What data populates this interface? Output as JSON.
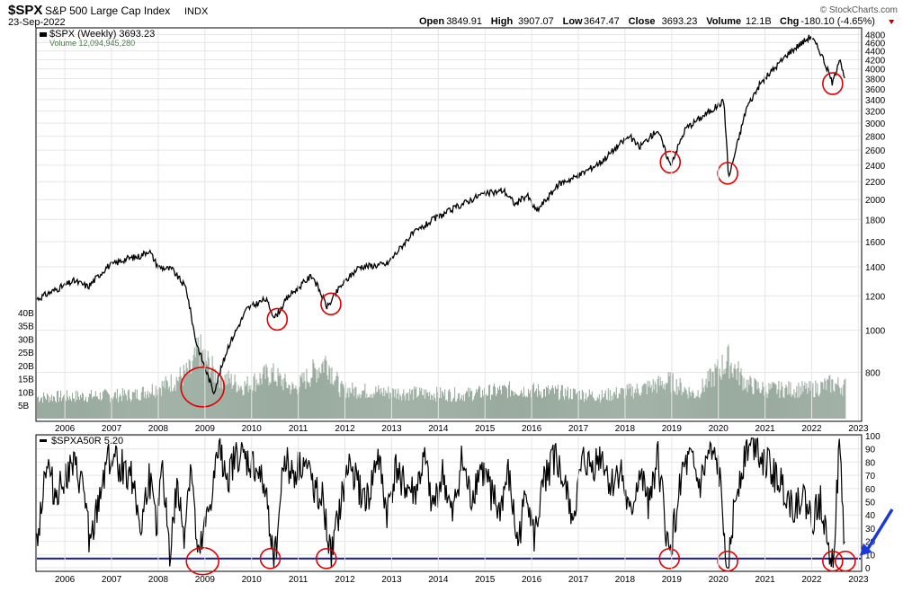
{
  "header": {
    "symbol": "$SPX",
    "name": "S&P 500 Large Cap Index",
    "exchange": "INDX",
    "date": "23-Sep-2022",
    "watermark": "© StockCharts.com",
    "quote": [
      {
        "label": "Open",
        "value": "3849.91"
      },
      {
        "label": "High",
        "value": "3907.07"
      },
      {
        "label": "Low",
        "value": "3647.47"
      },
      {
        "label": "Close",
        "value": "3693.23"
      },
      {
        "label": "Volume",
        "value": "12.1B"
      },
      {
        "label": "Chg",
        "value": "-180.10 (-4.65%)"
      }
    ],
    "chg_color": "#b00000"
  },
  "chart_data": [
    {
      "type": "line",
      "panel": "price",
      "legend": "$SPX (Weekly) 3693.23",
      "volume_legend": "Volume 12,094,945,280",
      "y_scale": "log",
      "ylim": [
        620,
        4950
      ],
      "x_ticks": [
        "2006",
        "2007",
        "2008",
        "2009",
        "2010",
        "2011",
        "2012",
        "2013",
        "2014",
        "2015",
        "2016",
        "2017",
        "2018",
        "2019",
        "2020",
        "2021",
        "2022",
        "2023"
      ],
      "y_ticks": [
        "800",
        "1000",
        "1200",
        "1400",
        "1600",
        "1800",
        "2000",
        "2200",
        "2400",
        "2600",
        "2800",
        "3000",
        "3200",
        "3400",
        "3600",
        "3800",
        "4000",
        "4200",
        "4400",
        "4600",
        "4800"
      ],
      "volume_ticks": [
        "5B",
        "10B",
        "15B",
        "20B",
        "25B",
        "30B",
        "35B",
        "40B"
      ],
      "series": [
        {
          "x": [
            2005.4,
            2005.8,
            2006.2,
            2006.5,
            2006.9,
            2007.3,
            2007.6,
            2007.8,
            2008.0,
            2008.3,
            2008.6,
            2008.8,
            2008.95,
            2009.19,
            2009.5,
            2009.9,
            2010.3,
            2010.5,
            2010.8,
            2011.3,
            2011.62,
            2011.9,
            2012.3,
            2012.9,
            2013.4,
            2013.9,
            2014.5,
            2014.9,
            2015.4,
            2015.65,
            2015.9,
            2016.1,
            2016.6,
            2017.0,
            2017.5,
            2017.9,
            2018.1,
            2018.3,
            2018.7,
            2018.97,
            2019.3,
            2019.9,
            2020.12,
            2020.22,
            2020.6,
            2020.9,
            2021.5,
            2021.98,
            2022.2,
            2022.45,
            2022.6,
            2022.72
          ],
          "y": [
            1180,
            1240,
            1300,
            1260,
            1400,
            1460,
            1480,
            1530,
            1400,
            1380,
            1250,
            950,
            850,
            720,
            920,
            1120,
            1180,
            1070,
            1200,
            1340,
            1130,
            1260,
            1400,
            1420,
            1650,
            1800,
            1950,
            2050,
            2100,
            1950,
            2050,
            1880,
            2180,
            2270,
            2450,
            2690,
            2800,
            2640,
            2900,
            2400,
            2920,
            3240,
            3380,
            2240,
            3250,
            3700,
            4350,
            4760,
            4350,
            3700,
            4280,
            3693
          ]
        }
      ],
      "volume": {
        "unit": "B",
        "x": [
          2005.4,
          2006.5,
          2007.5,
          2008.2,
          2008.7,
          2008.85,
          2009.2,
          2009.8,
          2010.4,
          2010.9,
          2011.6,
          2011.9,
          2012.8,
          2013.5,
          2014.5,
          2015.6,
          2016.5,
          2017.5,
          2018.3,
          2018.95,
          2019.5,
          2020.2,
          2020.6,
          2021.0,
          2022.0,
          2022.4,
          2022.72
        ],
        "values": [
          8,
          8.5,
          9,
          13,
          18,
          26,
          17,
          12,
          17,
          11,
          22,
          11,
          10,
          9.5,
          9,
          11,
          10,
          8.5,
          11,
          14,
          9,
          22,
          13,
          11,
          11,
          13,
          12.1
        ]
      },
      "annotations": [
        {
          "x": 2008.95,
          "y": 740,
          "size": "large"
        },
        {
          "x": 2010.55,
          "y": 1060
        },
        {
          "x": 2011.7,
          "y": 1150
        },
        {
          "x": 2018.97,
          "y": 2440
        },
        {
          "x": 2020.2,
          "y": 2300
        },
        {
          "x": 2022.45,
          "y": 3700
        }
      ]
    },
    {
      "type": "line",
      "panel": "indicator",
      "legend": "$SPXA50R 5.20",
      "ylim": [
        -2,
        100
      ],
      "y_ticks": [
        "0",
        "10",
        "20",
        "30",
        "40",
        "50",
        "60",
        "70",
        "80",
        "90",
        "100"
      ],
      "reference_line": {
        "value": 7,
        "color": "#1a1aa0"
      },
      "series": [
        {
          "x": [
            2005.4,
            2005.6,
            2005.8,
            2006.0,
            2006.2,
            2006.4,
            2006.55,
            2006.7,
            2006.9,
            2007.1,
            2007.3,
            2007.5,
            2007.62,
            2007.8,
            2007.95,
            2008.1,
            2008.25,
            2008.4,
            2008.55,
            2008.7,
            2008.85,
            2009.1,
            2009.3,
            2009.5,
            2009.7,
            2009.9,
            2010.1,
            2010.3,
            2010.5,
            2010.7,
            2010.9,
            2011.1,
            2011.3,
            2011.5,
            2011.7,
            2011.9,
            2012.1,
            2012.3,
            2012.5,
            2012.7,
            2012.9,
            2013.1,
            2013.3,
            2013.5,
            2013.7,
            2013.9,
            2014.1,
            2014.3,
            2014.5,
            2014.7,
            2014.9,
            2015.1,
            2015.3,
            2015.5,
            2015.7,
            2015.9,
            2016.05,
            2016.3,
            2016.5,
            2016.7,
            2016.9,
            2017.1,
            2017.3,
            2017.5,
            2017.7,
            2017.9,
            2018.1,
            2018.3,
            2018.5,
            2018.7,
            2018.95,
            2019.2,
            2019.4,
            2019.6,
            2019.8,
            2020.0,
            2020.2,
            2020.4,
            2020.6,
            2020.8,
            2021.0,
            2021.2,
            2021.4,
            2021.6,
            2021.8,
            2022.0,
            2022.2,
            2022.45,
            2022.6,
            2022.72
          ],
          "y": [
            20,
            80,
            55,
            70,
            75,
            60,
            15,
            45,
            85,
            80,
            75,
            65,
            25,
            70,
            30,
            75,
            10,
            60,
            25,
            80,
            2,
            45,
            90,
            70,
            85,
            80,
            75,
            55,
            8,
            85,
            70,
            80,
            65,
            55,
            5,
            45,
            80,
            60,
            50,
            85,
            40,
            75,
            60,
            55,
            80,
            45,
            70,
            35,
            80,
            50,
            75,
            60,
            40,
            70,
            15,
            60,
            20,
            70,
            85,
            60,
            40,
            80,
            75,
            85,
            60,
            75,
            35,
            70,
            50,
            85,
            5,
            70,
            80,
            60,
            85,
            75,
            2,
            60,
            90,
            95,
            80,
            70,
            60,
            45,
            55,
            35,
            50,
            3,
            92,
            5
          ]
        }
      ],
      "annotations": [
        {
          "x": 2008.95,
          "y": 5,
          "size": "large"
        },
        {
          "x": 2010.4,
          "y": 7
        },
        {
          "x": 2011.6,
          "y": 7
        },
        {
          "x": 2018.95,
          "y": 7
        },
        {
          "x": 2020.2,
          "y": 5
        },
        {
          "x": 2022.45,
          "y": 5
        },
        {
          "x": 2022.72,
          "y": 5
        }
      ],
      "arrow": {
        "color": "#1a3ad8"
      }
    }
  ]
}
